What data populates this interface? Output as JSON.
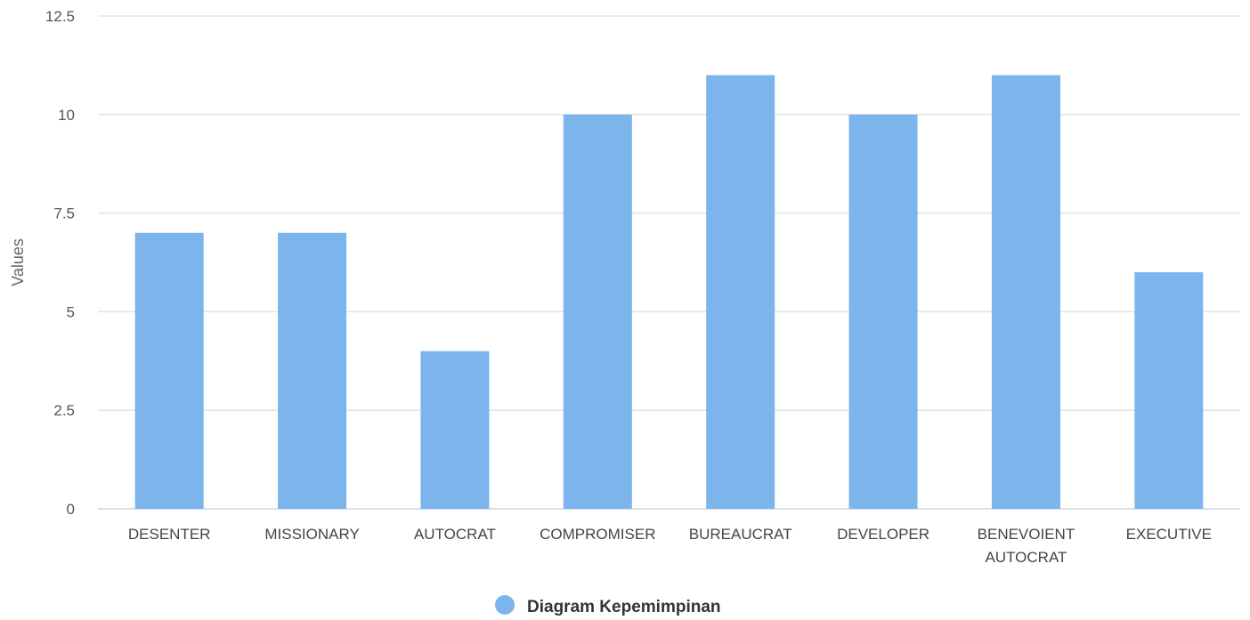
{
  "chart_data": {
    "type": "bar",
    "categories": [
      [
        "DESENTER"
      ],
      [
        "MISSIONARY"
      ],
      [
        "AUTOCRAT"
      ],
      [
        "COMPROMISER"
      ],
      [
        "BUREAUCRAT"
      ],
      [
        "DEVELOPER"
      ],
      [
        "BENEVOIENT",
        "AUTOCRAT"
      ],
      [
        "EXECUTIVE"
      ]
    ],
    "series": [
      {
        "name": "Diagram Kepemimpinan",
        "values": [
          7,
          7,
          4,
          10,
          11,
          10,
          11,
          6
        ],
        "color": "#7cb4ec"
      }
    ],
    "ylabel": "Values",
    "ylim": [
      0,
      12.5
    ],
    "yticks": [
      {
        "value": 0,
        "label": "0"
      },
      {
        "value": 2.5,
        "label": "2.5"
      },
      {
        "value": 5,
        "label": "5"
      },
      {
        "value": 7.5,
        "label": "7.5"
      },
      {
        "value": 10,
        "label": "10"
      },
      {
        "value": 12.5,
        "label": "12.5"
      }
    ],
    "grid": true,
    "legend": "bottom-center"
  }
}
